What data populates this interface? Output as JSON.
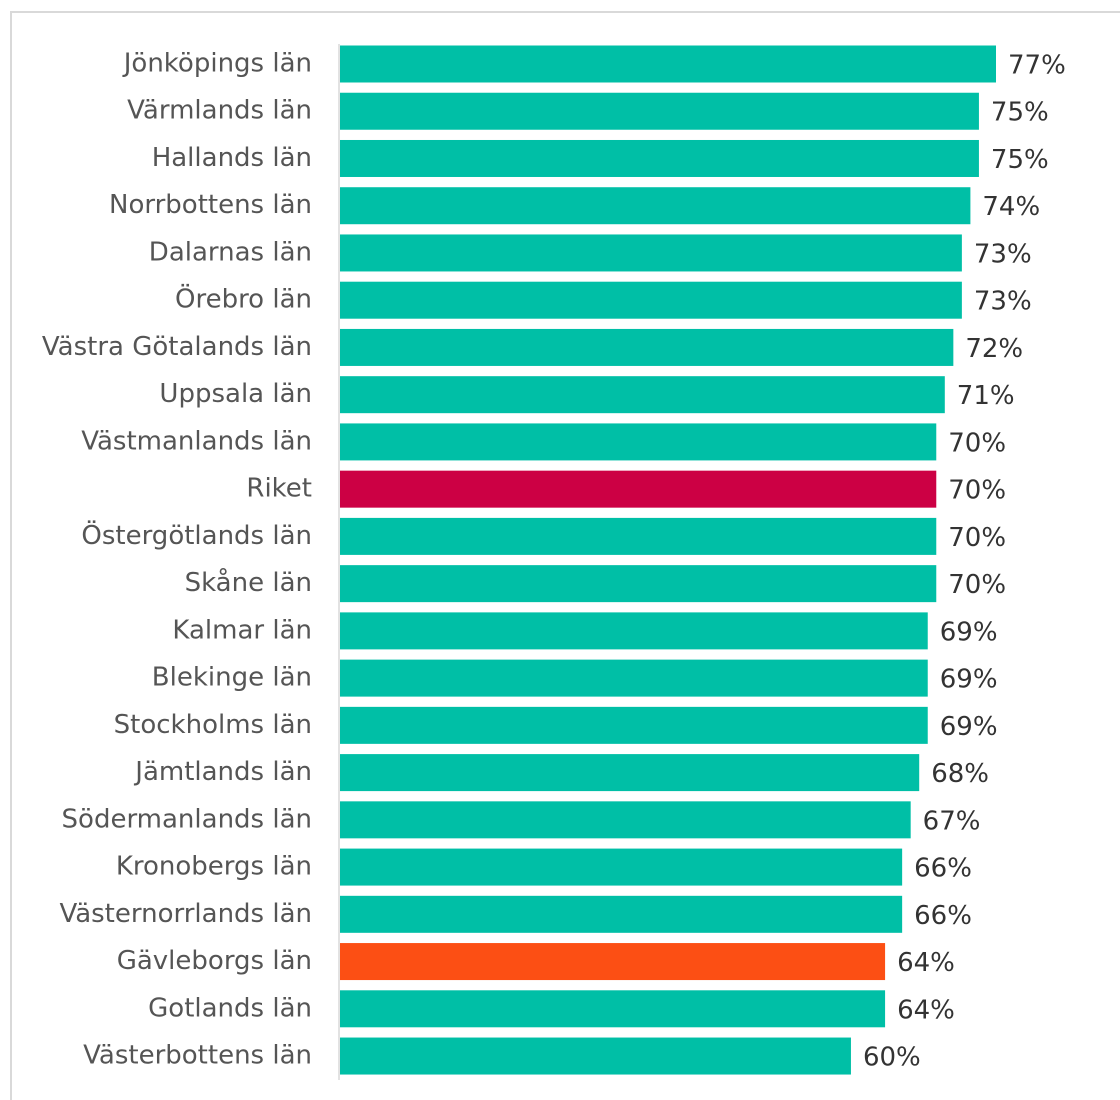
{
  "chart_data": {
    "type": "bar",
    "orientation": "horizontal",
    "categories": [
      "Jönköpings län",
      "Värmlands län",
      "Hallands län",
      "Norrbottens län",
      "Dalarnas län",
      "Örebro län",
      "Västra Götalands län",
      "Uppsala län",
      "Västmanlands län",
      "Riket",
      "Östergötlands län",
      "Skåne län",
      "Kalmar län",
      "Blekinge län",
      "Stockholms län",
      "Jämtlands län",
      "Södermanlands län",
      "Kronobergs län",
      "Västernorrlands län",
      "Gävleborgs län",
      "Gotlands län",
      "Västerbottens län"
    ],
    "values": [
      77,
      75,
      75,
      74,
      73,
      73,
      72,
      71,
      70,
      70,
      70,
      70,
      69,
      69,
      69,
      68,
      67,
      66,
      66,
      64,
      64,
      60
    ],
    "value_labels": [
      "77%",
      "75%",
      "75%",
      "74%",
      "73%",
      "73%",
      "72%",
      "71%",
      "70%",
      "70%",
      "70%",
      "70%",
      "69%",
      "69%",
      "69%",
      "68%",
      "67%",
      "66%",
      "66%",
      "64%",
      "64%",
      "60%"
    ],
    "colors": [
      "#00bfa6",
      "#00bfa6",
      "#00bfa6",
      "#00bfa6",
      "#00bfa6",
      "#00bfa6",
      "#00bfa6",
      "#00bfa6",
      "#00bfa6",
      "#cc0044",
      "#00bfa6",
      "#00bfa6",
      "#00bfa6",
      "#00bfa6",
      "#00bfa6",
      "#00bfa6",
      "#00bfa6",
      "#00bfa6",
      "#00bfa6",
      "#fc4f14",
      "#00bfa6",
      "#00bfa6"
    ]
  }
}
